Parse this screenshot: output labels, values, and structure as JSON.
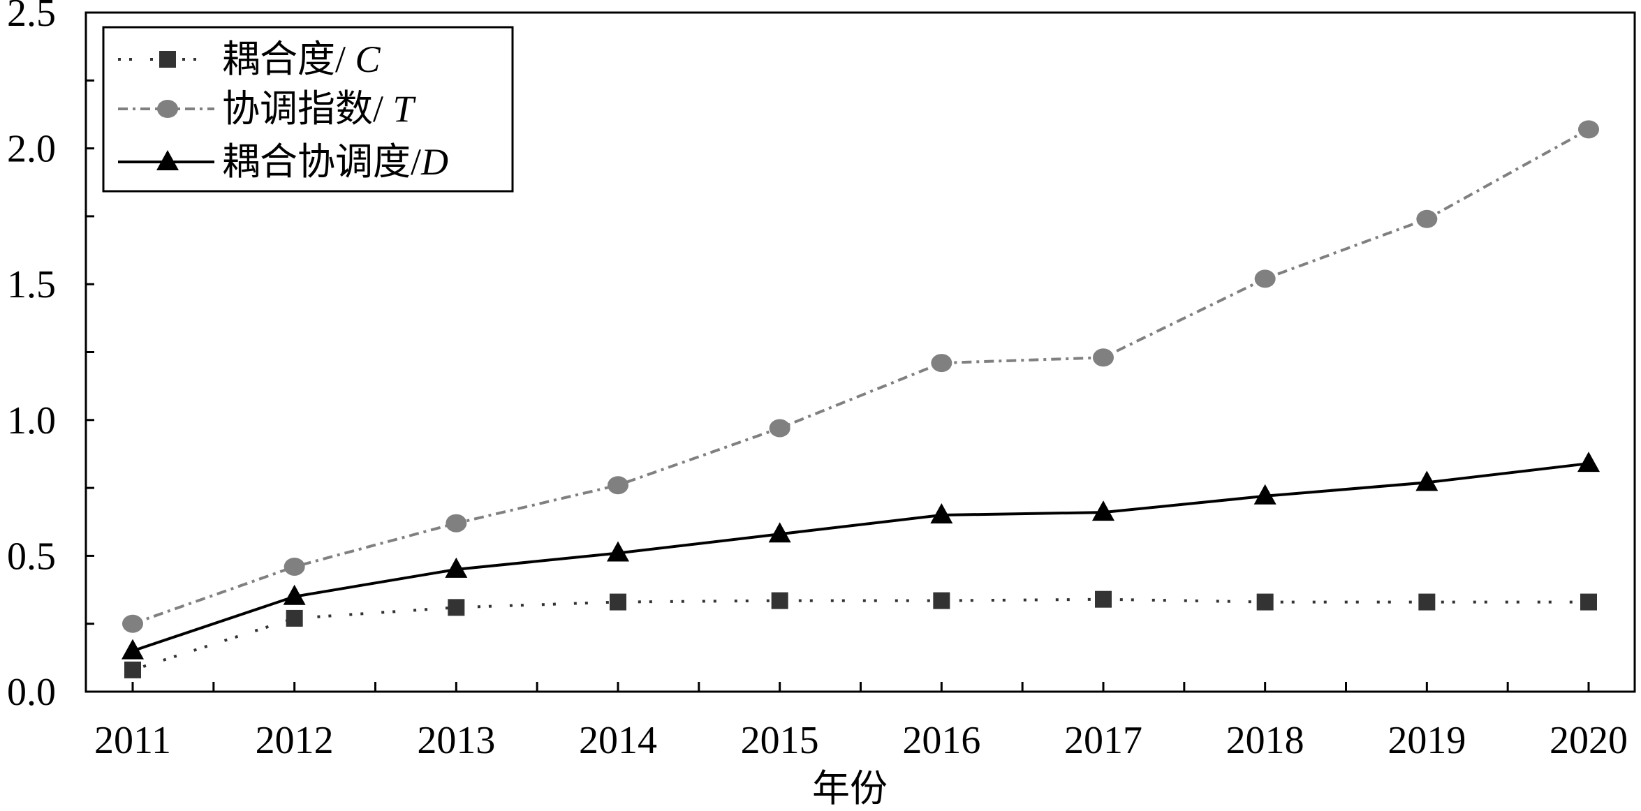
{
  "chart_data": {
    "type": "line",
    "categories": [
      "2011",
      "2012",
      "2013",
      "2014",
      "2015",
      "2016",
      "2017",
      "2018",
      "2019",
      "2020"
    ],
    "xlabel": "年份",
    "ylabel": "",
    "ylim": [
      0,
      2.5
    ],
    "yticks": [
      "0.0",
      "0.5",
      "1.0",
      "1.5",
      "2.0",
      "2.5"
    ],
    "grid": false,
    "legend": "top-left",
    "series": [
      {
        "name": "耦合度/ C",
        "marker": "square",
        "line": "dotted",
        "color": "#333333",
        "values": [
          0.08,
          0.27,
          0.31,
          0.33,
          0.335,
          0.335,
          0.34,
          0.33,
          0.33,
          0.33
        ]
      },
      {
        "name": "协调指数/ T",
        "marker": "circle",
        "line": "dash-dot",
        "color": "#808080",
        "values": [
          0.25,
          0.46,
          0.62,
          0.76,
          0.97,
          1.21,
          1.23,
          1.52,
          1.74,
          2.07
        ]
      },
      {
        "name": "耦合协调度/D",
        "marker": "triangle",
        "line": "solid",
        "color": "#000000",
        "values": [
          0.15,
          0.35,
          0.45,
          0.51,
          0.58,
          0.65,
          0.66,
          0.72,
          0.77,
          0.84
        ]
      }
    ]
  }
}
